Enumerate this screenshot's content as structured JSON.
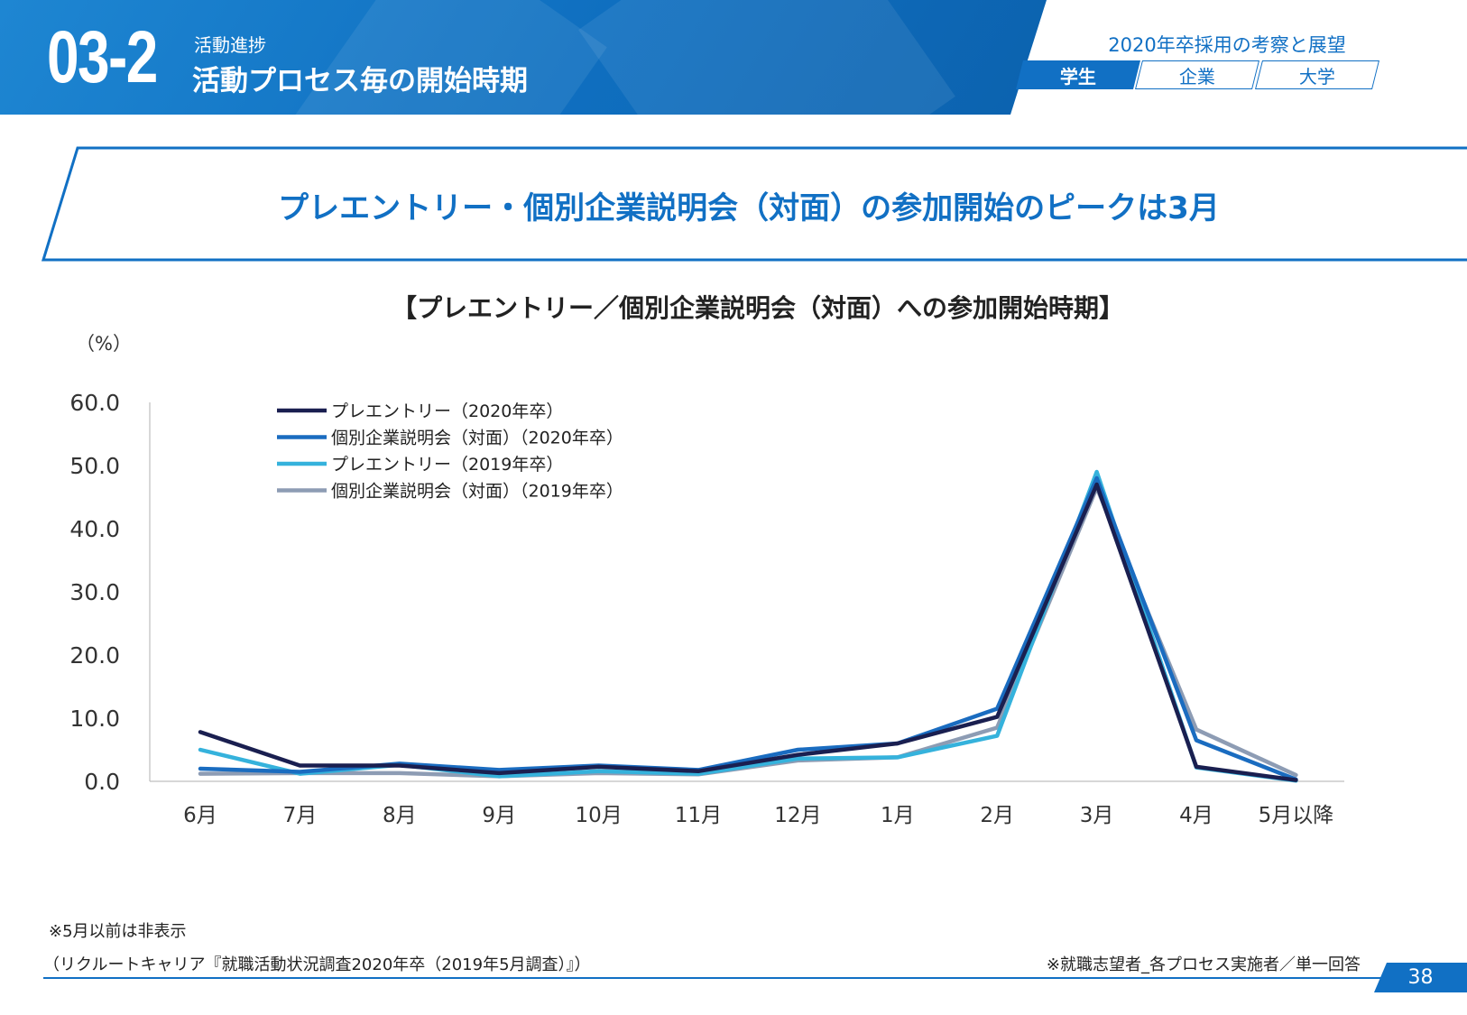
{
  "header": {
    "section_number": "03-2",
    "section_category": "活動進捗",
    "section_title": "活動プロセス毎の開始時期",
    "report_title": "2020年卒採用の考察と展望",
    "tabs": [
      {
        "label": "学生",
        "active": true
      },
      {
        "label": "企業",
        "active": false
      },
      {
        "label": "大学",
        "active": false
      }
    ]
  },
  "headline": "プレエントリー・個別企業説明会（対面）の参加開始のピークは3月",
  "chart_data": {
    "type": "line",
    "title": "【プレエントリー／個別企業説明会（対面）への参加開始時期】",
    "unit_label": "（%）",
    "categories": [
      "6月",
      "7月",
      "8月",
      "9月",
      "10月",
      "11月",
      "12月",
      "1月",
      "2月",
      "3月",
      "4月",
      "5月以降"
    ],
    "ylim": [
      0,
      60
    ],
    "yticks": [
      "0.0",
      "10.0",
      "20.0",
      "30.0",
      "40.0",
      "50.0",
      "60.0"
    ],
    "grid": false,
    "legend_position": "top-left",
    "series": [
      {
        "name": "プレエントリー（2020年卒）",
        "color": "#1a1f50",
        "values": [
          7.8,
          2.5,
          2.5,
          1.3,
          2.3,
          1.6,
          4.2,
          6.0,
          10.2,
          47.0,
          2.3,
          0.2
        ]
      },
      {
        "name": "個別企業説明会（対面）（2020年卒）",
        "color": "#1a6cc0",
        "values": [
          2.0,
          1.5,
          2.8,
          1.8,
          2.5,
          1.8,
          5.0,
          6.0,
          11.5,
          48.0,
          6.5,
          0.3
        ]
      },
      {
        "name": "プレエントリー（2019年卒）",
        "color": "#35b2dc",
        "values": [
          5.0,
          1.2,
          2.6,
          0.8,
          1.6,
          1.2,
          3.6,
          3.8,
          7.2,
          49.0,
          2.2,
          0.1
        ]
      },
      {
        "name": "個別企業説明会（対面）（2019年卒）",
        "color": "#8d9cb4",
        "values": [
          1.2,
          1.3,
          1.3,
          0.8,
          1.3,
          1.1,
          3.3,
          3.8,
          8.5,
          46.5,
          8.2,
          1.0
        ]
      }
    ]
  },
  "footer": {
    "note_hidden": "※5月以前は非表示",
    "source": "（リクルートキャリア『就職活動状況調査2020年卒（2019年5月調査）』）",
    "respondents": "※就職志望者_各プロセス実施者／単一回答",
    "page_number": "38"
  }
}
